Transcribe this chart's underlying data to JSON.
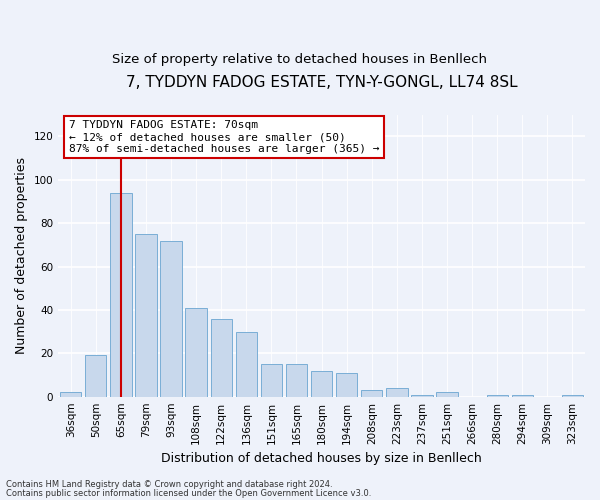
{
  "title": "7, TYDDYN FADOG ESTATE, TYN-Y-GONGL, LL74 8SL",
  "subtitle": "Size of property relative to detached houses in Benllech",
  "xlabel": "Distribution of detached houses by size in Benllech",
  "ylabel": "Number of detached properties",
  "categories": [
    "36sqm",
    "50sqm",
    "65sqm",
    "79sqm",
    "93sqm",
    "108sqm",
    "122sqm",
    "136sqm",
    "151sqm",
    "165sqm",
    "180sqm",
    "194sqm",
    "208sqm",
    "223sqm",
    "237sqm",
    "251sqm",
    "266sqm",
    "280sqm",
    "294sqm",
    "309sqm",
    "323sqm"
  ],
  "values": [
    2,
    19,
    94,
    75,
    72,
    41,
    36,
    30,
    15,
    15,
    12,
    11,
    3,
    4,
    1,
    2,
    0,
    1,
    1,
    0,
    1
  ],
  "bar_color": "#c8d8ec",
  "bar_edge_color": "#7aaed6",
  "highlight_bar_index": 2,
  "highlight_line_color": "#cc0000",
  "ylim": [
    0,
    130
  ],
  "yticks": [
    0,
    20,
    40,
    60,
    80,
    100,
    120
  ],
  "annotation_text": "7 TYDDYN FADOG ESTATE: 70sqm\n← 12% of detached houses are smaller (50)\n87% of semi-detached houses are larger (365) →",
  "annotation_box_color": "#ffffff",
  "annotation_box_edge": "#cc0000",
  "footer_line1": "Contains HM Land Registry data © Crown copyright and database right 2024.",
  "footer_line2": "Contains public sector information licensed under the Open Government Licence v3.0.",
  "background_color": "#eef2fa",
  "title_fontsize": 11,
  "subtitle_fontsize": 9.5,
  "tick_fontsize": 7.5,
  "ylabel_fontsize": 9,
  "xlabel_fontsize": 9,
  "annotation_fontsize": 8,
  "footer_fontsize": 6
}
